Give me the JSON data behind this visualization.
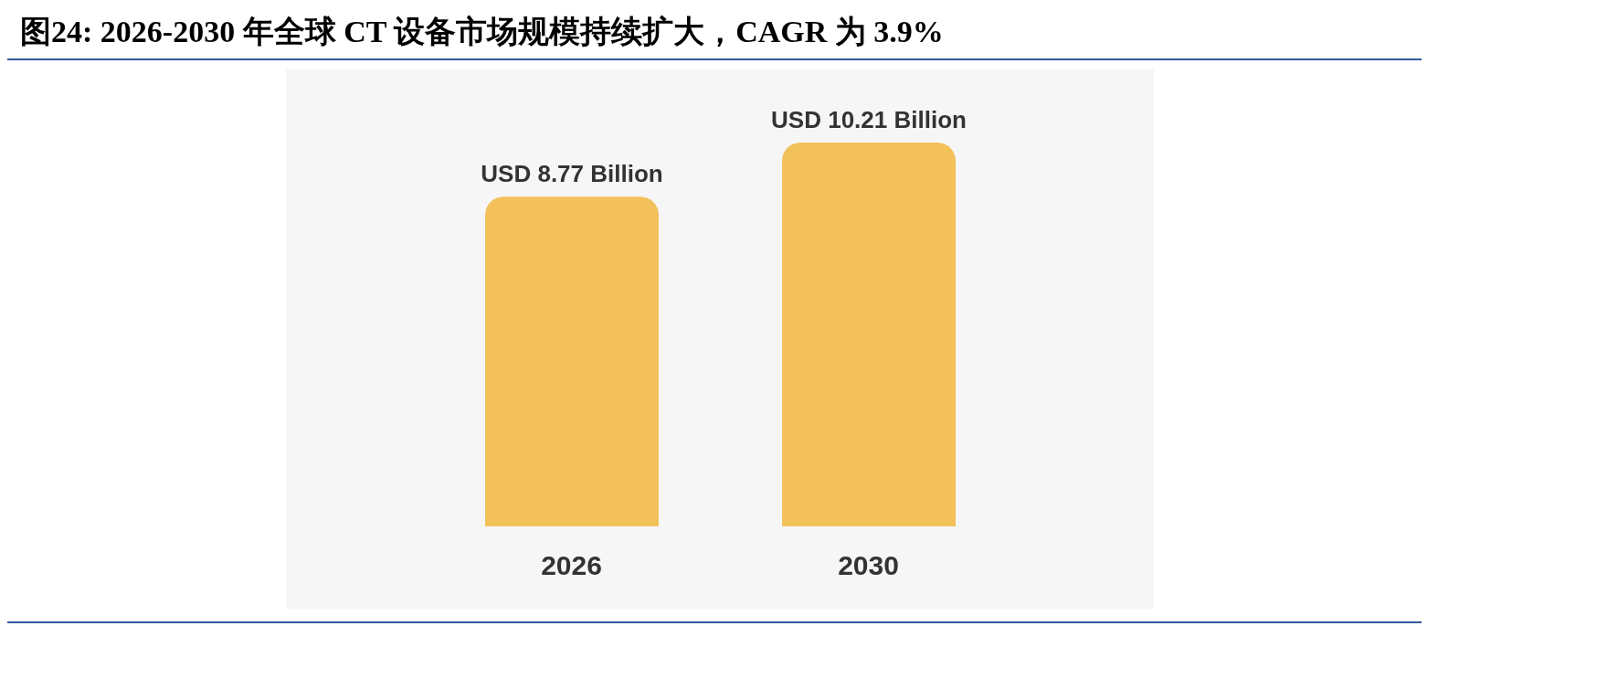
{
  "chart_data": {
    "type": "bar",
    "title": "图24: 2026-2030 年全球 CT 设备市场规模持续扩大，CAGR 为 3.9%",
    "categories": [
      "2026",
      "2030"
    ],
    "values": [
      8.77,
      10.21
    ],
    "value_labels": [
      "USD 8.77 Billion",
      "USD 10.21 Billion"
    ],
    "colors": [
      "#f2c15a",
      "#f2c15a"
    ],
    "grid": false,
    "legend": false
  }
}
